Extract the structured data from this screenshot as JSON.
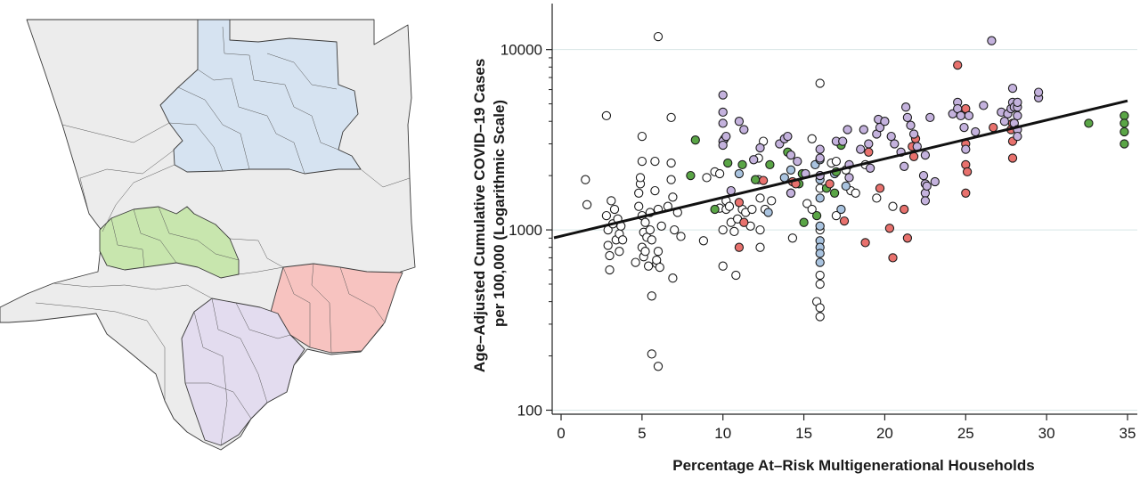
{
  "map": {
    "base_color": "#ececec",
    "regions": [
      {
        "id": "north",
        "color": "#d6e3f1"
      },
      {
        "id": "west-valley",
        "color": "#c8e6ae"
      },
      {
        "id": "east",
        "color": "#f7c3c0"
      },
      {
        "id": "south-central",
        "color": "#e3dcef"
      }
    ]
  },
  "chart_data": {
    "type": "scatter",
    "xlabel": "Percentage At–Risk Multigenerational Households",
    "ylabel_line1": "Age–Adjusted Cumulative COVID–19 Cases",
    "ylabel_line2": "per 100,000 (Logarithmic Scale)",
    "x_ticks": [
      "0",
      "5",
      "10",
      "15",
      "20",
      "25",
      "30",
      "35"
    ],
    "y_ticks": [
      "100",
      "1000",
      "10000"
    ],
    "xlim": [
      0,
      35
    ],
    "ylim": [
      95,
      18000
    ],
    "y_scale": "log",
    "grid": "horizontal at 100, 1000, 10000",
    "trendline": {
      "x": [
        0,
        35
      ],
      "y": [
        935,
        5200
      ],
      "color": "#111111"
    },
    "colors": {
      "white": "#ffffff",
      "blue": "#a9c3df",
      "green": "#5aa546",
      "red": "#e8716d",
      "purple": "#c4b2dd"
    },
    "series": [
      {
        "color_key": "white",
        "points": [
          [
            1.5,
            1900
          ],
          [
            1.6,
            1380
          ],
          [
            2.8,
            4300
          ],
          [
            2.8,
            1200
          ],
          [
            2.9,
            1000
          ],
          [
            2.9,
            820
          ],
          [
            3,
            720
          ],
          [
            3,
            600
          ],
          [
            3.1,
            1450
          ],
          [
            3.2,
            1080
          ],
          [
            3.3,
            1300
          ],
          [
            3.4,
            880
          ],
          [
            3.5,
            1150
          ],
          [
            3.6,
            950
          ],
          [
            3.6,
            760
          ],
          [
            3.7,
            1050
          ],
          [
            3.8,
            880
          ],
          [
            4.6,
            660
          ],
          [
            4.8,
            1350
          ],
          [
            4.8,
            1600
          ],
          [
            4.9,
            1800
          ],
          [
            4.9,
            1950
          ],
          [
            5,
            2400
          ],
          [
            5,
            3300
          ],
          [
            5,
            1200
          ],
          [
            5,
            800
          ],
          [
            5.1,
            970
          ],
          [
            5.1,
            710
          ],
          [
            5.2,
            1100
          ],
          [
            5.2,
            760
          ],
          [
            5.3,
            910
          ],
          [
            5.4,
            630
          ],
          [
            5.5,
            1250
          ],
          [
            5.5,
            1000
          ],
          [
            5.6,
            880
          ],
          [
            5.6,
            430
          ],
          [
            5.6,
            205
          ],
          [
            5.8,
            1650
          ],
          [
            5.8,
            2400
          ],
          [
            5.9,
            650
          ],
          [
            5.9,
            680
          ],
          [
            6,
            11800
          ],
          [
            6,
            1300
          ],
          [
            6,
            760
          ],
          [
            6,
            175
          ],
          [
            6.1,
            620
          ],
          [
            6.2,
            1050
          ],
          [
            6.6,
            1350
          ],
          [
            6.8,
            4200
          ],
          [
            6.8,
            2350
          ],
          [
            6.8,
            1900
          ],
          [
            6.9,
            1520
          ],
          [
            6.9,
            540
          ],
          [
            7,
            1000
          ],
          [
            7.2,
            1250
          ],
          [
            7.4,
            920
          ],
          [
            8.8,
            870
          ],
          [
            9,
            1950
          ],
          [
            9.5,
            2100
          ],
          [
            9.8,
            2050
          ],
          [
            9.8,
            1320
          ],
          [
            10,
            1000
          ],
          [
            10,
            630
          ],
          [
            10.1,
            3200
          ],
          [
            10.2,
            1450
          ],
          [
            10.2,
            1300
          ],
          [
            10.4,
            1350
          ],
          [
            10.5,
            1100
          ],
          [
            10.7,
            980
          ],
          [
            10.8,
            560
          ],
          [
            10.9,
            1150
          ],
          [
            11.2,
            1300
          ],
          [
            11.4,
            1250
          ],
          [
            11.7,
            1050
          ],
          [
            11.8,
            1300
          ],
          [
            12.2,
            2500
          ],
          [
            12.2,
            1900
          ],
          [
            12.3,
            1500
          ],
          [
            12.3,
            1000
          ],
          [
            12.3,
            800
          ],
          [
            12.5,
            3100
          ],
          [
            12.6,
            1300
          ],
          [
            13,
            1450
          ],
          [
            14.2,
            1600
          ],
          [
            14.3,
            900
          ],
          [
            15.2,
            1400
          ],
          [
            15.5,
            3200
          ],
          [
            15.5,
            1300
          ],
          [
            15.8,
            400
          ],
          [
            16,
            6500
          ],
          [
            16,
            2000
          ],
          [
            16,
            1700
          ],
          [
            16,
            1000
          ],
          [
            16,
            560
          ],
          [
            16,
            500
          ],
          [
            16,
            370
          ],
          [
            16,
            330
          ],
          [
            16.7,
            2350
          ],
          [
            17,
            2400
          ],
          [
            17,
            1200
          ],
          [
            17.6,
            2150
          ],
          [
            17.9,
            1650
          ],
          [
            18.2,
            1600
          ],
          [
            18.8,
            2300
          ],
          [
            19.5,
            1500
          ],
          [
            20.5,
            1350
          ]
        ]
      },
      {
        "color_key": "blue",
        "points": [
          [
            11,
            2050
          ],
          [
            12.8,
            1250
          ],
          [
            13.8,
            1950
          ],
          [
            14.2,
            2150
          ],
          [
            15.7,
            2300
          ],
          [
            16,
            2450
          ],
          [
            16,
            1900
          ],
          [
            16,
            1500
          ],
          [
            16,
            1050
          ],
          [
            16,
            870
          ],
          [
            16,
            800
          ],
          [
            16,
            740
          ],
          [
            16,
            660
          ],
          [
            16.9,
            2050
          ],
          [
            17.3,
            1300
          ],
          [
            17.6,
            1750
          ]
        ]
      },
      {
        "color_key": "green",
        "points": [
          [
            8,
            2000
          ],
          [
            8.3,
            3150
          ],
          [
            9.5,
            1300
          ],
          [
            10.3,
            2350
          ],
          [
            11.2,
            2300
          ],
          [
            12,
            1900
          ],
          [
            12.9,
            2300
          ],
          [
            14,
            2700
          ],
          [
            14.7,
            1800
          ],
          [
            14.9,
            2050
          ],
          [
            15,
            1100
          ],
          [
            15.8,
            1200
          ],
          [
            16.4,
            1700
          ],
          [
            16.9,
            1600
          ],
          [
            17,
            2100
          ],
          [
            17.3,
            2950
          ],
          [
            32.6,
            3900
          ],
          [
            34.8,
            4300
          ],
          [
            34.8,
            3900
          ],
          [
            34.8,
            3500
          ],
          [
            34.8,
            3000
          ]
        ]
      },
      {
        "color_key": "red",
        "points": [
          [
            11,
            1420
          ],
          [
            11.3,
            1100
          ],
          [
            11,
            800
          ],
          [
            12.5,
            1880
          ],
          [
            14.3,
            1850
          ],
          [
            14.5,
            1800
          ],
          [
            16.6,
            1800
          ],
          [
            17.5,
            1120
          ],
          [
            18.8,
            850
          ],
          [
            19,
            2700
          ],
          [
            19.7,
            1700
          ],
          [
            20.3,
            1020
          ],
          [
            20.5,
            700
          ],
          [
            21.2,
            1300
          ],
          [
            21.4,
            900
          ],
          [
            21.7,
            2900
          ],
          [
            21.8,
            2550
          ],
          [
            21.9,
            3200
          ],
          [
            24.5,
            8200
          ],
          [
            24.8,
            4400
          ],
          [
            25,
            4700
          ],
          [
            25,
            3000
          ],
          [
            25,
            2300
          ],
          [
            25,
            1600
          ],
          [
            25.1,
            2100
          ],
          [
            26.7,
            3700
          ],
          [
            27.8,
            3600
          ],
          [
            27.9,
            2500
          ],
          [
            27.9,
            3100
          ],
          [
            27.9,
            3900
          ]
        ]
      },
      {
        "color_key": "purple",
        "points": [
          [
            10,
            5600
          ],
          [
            10,
            4500
          ],
          [
            10,
            3900
          ],
          [
            10,
            3100
          ],
          [
            10,
            2950
          ],
          [
            10.2,
            3300
          ],
          [
            10.5,
            1650
          ],
          [
            11,
            4000
          ],
          [
            11.3,
            3600
          ],
          [
            11.9,
            2450
          ],
          [
            12.3,
            2850
          ],
          [
            13.5,
            3000
          ],
          [
            13.8,
            3200
          ],
          [
            14,
            3300
          ],
          [
            14.2,
            2600
          ],
          [
            14.2,
            1600
          ],
          [
            14.6,
            2400
          ],
          [
            15.1,
            2050
          ],
          [
            16,
            2800
          ],
          [
            16,
            2500
          ],
          [
            16,
            2000
          ],
          [
            17,
            3100
          ],
          [
            17.4,
            3100
          ],
          [
            17.7,
            3600
          ],
          [
            17.8,
            2300
          ],
          [
            17.8,
            1950
          ],
          [
            18.5,
            2800
          ],
          [
            18.7,
            3600
          ],
          [
            19,
            3000
          ],
          [
            19.1,
            2200
          ],
          [
            19.5,
            3400
          ],
          [
            19.6,
            4100
          ],
          [
            19.7,
            3700
          ],
          [
            20,
            4000
          ],
          [
            20.4,
            3300
          ],
          [
            20.6,
            3000
          ],
          [
            21,
            2700
          ],
          [
            21.2,
            2250
          ],
          [
            21.3,
            4800
          ],
          [
            21.4,
            4200
          ],
          [
            21.6,
            3800
          ],
          [
            21.8,
            3400
          ],
          [
            22,
            2900
          ],
          [
            22.5,
            2600
          ],
          [
            22.4,
            2000
          ],
          [
            22.5,
            1800
          ],
          [
            22.5,
            1600
          ],
          [
            22.5,
            1450
          ],
          [
            22.6,
            1750
          ],
          [
            22.8,
            4200
          ],
          [
            23.1,
            1850
          ],
          [
            24.2,
            4400
          ],
          [
            24.5,
            5100
          ],
          [
            24.5,
            4700
          ],
          [
            24.7,
            4300
          ],
          [
            24.9,
            3700
          ],
          [
            25,
            2800
          ],
          [
            25.2,
            4300
          ],
          [
            25.6,
            3500
          ],
          [
            26.1,
            4900
          ],
          [
            26.6,
            11200
          ],
          [
            27.2,
            4500
          ],
          [
            27.4,
            4000
          ],
          [
            27.6,
            4400
          ],
          [
            27.8,
            4700
          ],
          [
            27.9,
            6100
          ],
          [
            27.9,
            5100
          ],
          [
            28,
            4800
          ],
          [
            28.2,
            4300
          ],
          [
            28.2,
            4800
          ],
          [
            28.2,
            5100
          ],
          [
            28,
            3900
          ],
          [
            28.2,
            3600
          ],
          [
            28.2,
            3300
          ],
          [
            29.5,
            5400
          ],
          [
            29.5,
            5800
          ]
        ]
      }
    ]
  }
}
